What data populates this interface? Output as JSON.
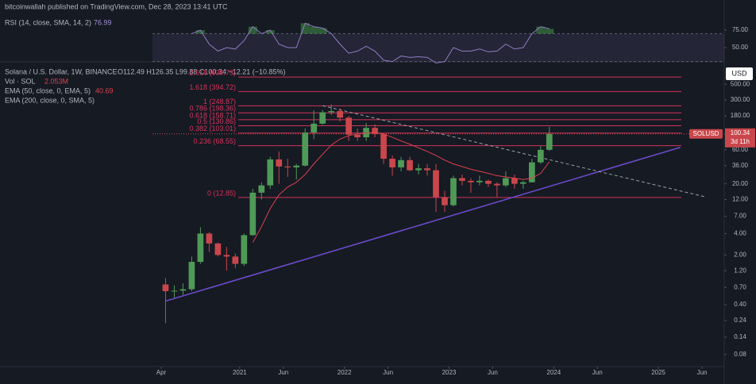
{
  "chart_data": {
    "type": "candlestick",
    "published": "bitcoinwallah published on TradingView.com, Dec 28, 2023 13:41 UTC",
    "symbol_line": "Solana / U.S. Dollar, 1W, BINANCE",
    "ohlc_line": "O112.49 H126.35 L99.88 C100.34 −12.21 (−10.85%)",
    "volume_label": "Vol · SOL",
    "volume_value": "2.053M",
    "currency": "USD",
    "ticker": "SOLUSD",
    "countdown": "3d 11h",
    "log_scale": true,
    "up_color": "#4f9a57",
    "down_color": "#c9474c",
    "x": [
      "2020-04",
      "2020-05",
      "2020-06",
      "2020-07",
      "2020-08",
      "2020-09",
      "2020-10",
      "2020-11",
      "2020-12",
      "2021-01",
      "2021-02",
      "2021-03",
      "2021-04",
      "2021-05",
      "2021-06",
      "2021-07",
      "2021-08",
      "2021-09",
      "2021-10",
      "2021-11",
      "2021-12",
      "2022-01",
      "2022-02",
      "2022-03",
      "2022-04",
      "2022-05",
      "2022-06",
      "2022-07",
      "2022-08",
      "2022-09",
      "2022-10",
      "2022-11",
      "2022-12",
      "2023-01",
      "2023-02",
      "2023-03",
      "2023-04",
      "2023-05",
      "2023-06",
      "2023-07",
      "2023-08",
      "2023-09",
      "2023-10",
      "2023-11",
      "2023-12"
    ],
    "open": [
      0.77,
      0.62,
      0.63,
      0.66,
      1.6,
      4.0,
      2.9,
      2.0,
      1.9,
      1.5,
      3.8,
      15,
      19,
      44,
      35,
      34,
      36,
      105,
      140,
      202,
      210,
      170,
      98,
      90,
      122,
      100,
      45,
      34,
      43,
      31,
      33,
      31,
      13,
      10,
      24,
      22,
      21,
      22,
      20,
      19,
      24,
      20,
      21,
      40,
      60
    ],
    "high": [
      0.95,
      0.75,
      0.8,
      1.9,
      4.9,
      4.2,
      3.0,
      2.6,
      2.1,
      4.0,
      17,
      21,
      48,
      57,
      45,
      38,
      120,
      216,
      218,
      260,
      230,
      180,
      120,
      143,
      137,
      102,
      50,
      48,
      48,
      38,
      38,
      38,
      16,
      26,
      27,
      24,
      26,
      23,
      21,
      30,
      27,
      22,
      45,
      68,
      126.35
    ],
    "low": [
      0.22,
      0.5,
      0.55,
      0.62,
      1.5,
      2.2,
      1.9,
      1.2,
      1.3,
      1.4,
      3.7,
      12,
      17,
      20,
      25,
      23,
      35,
      85,
      135,
      185,
      150,
      80,
      80,
      80,
      90,
      38,
      26,
      30,
      30,
      27,
      26,
      8,
      8,
      9.6,
      19,
      15,
      19,
      18,
      13,
      18,
      17,
      17,
      21,
      38,
      58
    ],
    "close": [
      0.62,
      0.63,
      0.66,
      1.6,
      4.0,
      2.9,
      2.0,
      1.9,
      1.5,
      3.8,
      15,
      19,
      44,
      35,
      34,
      36,
      105,
      140,
      202,
      210,
      170,
      98,
      90,
      122,
      100,
      45,
      34,
      43,
      31,
      33,
      31,
      13,
      10,
      24,
      22,
      21,
      22,
      20,
      19,
      24,
      20,
      21,
      40,
      60,
      100.34
    ],
    "ema": {
      "name": "EMA (50, close, 0, EMA, 5)",
      "color": "#d9424f",
      "values": [
        null,
        null,
        null,
        null,
        null,
        null,
        null,
        null,
        null,
        null,
        3,
        5,
        9,
        14,
        18,
        21,
        27,
        38,
        52,
        70,
        85,
        95,
        100,
        104,
        105,
        100,
        90,
        80,
        72,
        64,
        57,
        50,
        43,
        38,
        35,
        32,
        30,
        28,
        26,
        25,
        24,
        23,
        24,
        28,
        40.69
      ]
    },
    "ema200_name": "EMA (200, close, 0, SMA, 5)",
    "ylim": [
      0.057,
      650
    ],
    "yticks": [
      0.08,
      0.14,
      0.24,
      {
        "value": 0.4,
        "label": "0.40"
      },
      {
        "value": 0.7,
        "label": "0.70"
      },
      {
        "value": 1.2,
        "label": "1.20"
      },
      {
        "value": 2,
        "label": "2.00"
      },
      {
        "value": 4,
        "label": "4.00"
      },
      {
        "value": 7,
        "label": "7.00"
      },
      {
        "value": 12,
        "label": "12.00"
      },
      {
        "value": 20,
        "label": "20.00"
      },
      {
        "value": 36,
        "label": "36.00"
      },
      {
        "value": 60,
        "label": "60.00"
      },
      {
        "value": 100,
        "label": "100.00"
      },
      {
        "value": 180,
        "label": "180.00"
      },
      {
        "value": 300,
        "label": "300.00"
      },
      {
        "value": 500,
        "label": "500.00"
      }
    ],
    "xlim": [
      "2020-03",
      "2025-08"
    ],
    "xticks": [
      {
        "value": "2020-04",
        "label": "Apr"
      },
      {
        "value": "2021-01",
        "label": "2021"
      },
      {
        "value": "2021-06",
        "label": "Jun"
      },
      {
        "value": "2022-01",
        "label": "2022"
      },
      {
        "value": "2022-06",
        "label": "Jun"
      },
      {
        "value": "2023-01",
        "label": "2023"
      },
      {
        "value": "2023-06",
        "label": "Jun"
      },
      {
        "value": "2024-01",
        "label": "2024"
      },
      {
        "value": "2024-06",
        "label": "Jun"
      },
      {
        "value": "2025-01",
        "label": "2025"
      },
      {
        "value": "2025-06",
        "label": "Jun"
      }
    ],
    "fib_color": "#d1335a",
    "fib": [
      {
        "label": "0 (12.85)",
        "value": 12.85
      },
      {
        "label": "0.236 (68.55)",
        "value": 68.55
      },
      {
        "label": "0.382 (103.01)",
        "value": 103.01
      },
      {
        "label": "0.5 (130.86)",
        "value": 130.86
      },
      {
        "label": "0.618 (158.71)",
        "value": 158.71
      },
      {
        "label": "0.786 (198.36)",
        "value": 198.36
      },
      {
        "label": "1 (248.87)",
        "value": 248.87
      },
      {
        "label": "1.618 (394.72)",
        "value": 394.72
      },
      {
        "label": "2.618 (630.73)",
        "value": 630.73
      }
    ],
    "trendlines": [
      {
        "color": "#6a4bc8",
        "dashed": false,
        "x": [
          "2020-04",
          "2025-03"
        ],
        "values": [
          0.45,
          65
        ]
      },
      {
        "color": "#9aa0a8",
        "dashed": true,
        "x": [
          "2021-10",
          "2025-06"
        ],
        "values": [
          250,
          13
        ]
      }
    ],
    "rsi": {
      "name": "RSI (14, close, SMA, 14, 2)",
      "color": "#8e7cc3",
      "value": 76.99,
      "ylim": [
        21.6,
        95.5
      ],
      "yticks": [
        {
          "value": 75,
          "label": "75.00"
        },
        {
          "value": 50,
          "label": "50.00"
        }
      ],
      "band": [
        30,
        70
      ],
      "values": [
        null,
        null,
        null,
        70,
        75,
        55,
        45,
        50,
        48,
        60,
        80,
        70,
        75,
        55,
        50,
        50,
        85,
        80,
        78,
        70,
        55,
        42,
        45,
        52,
        45,
        32,
        30,
        38,
        36,
        37,
        36,
        28,
        30,
        50,
        45,
        45,
        48,
        44,
        45,
        55,
        48,
        50,
        70,
        80,
        76.99
      ]
    }
  }
}
